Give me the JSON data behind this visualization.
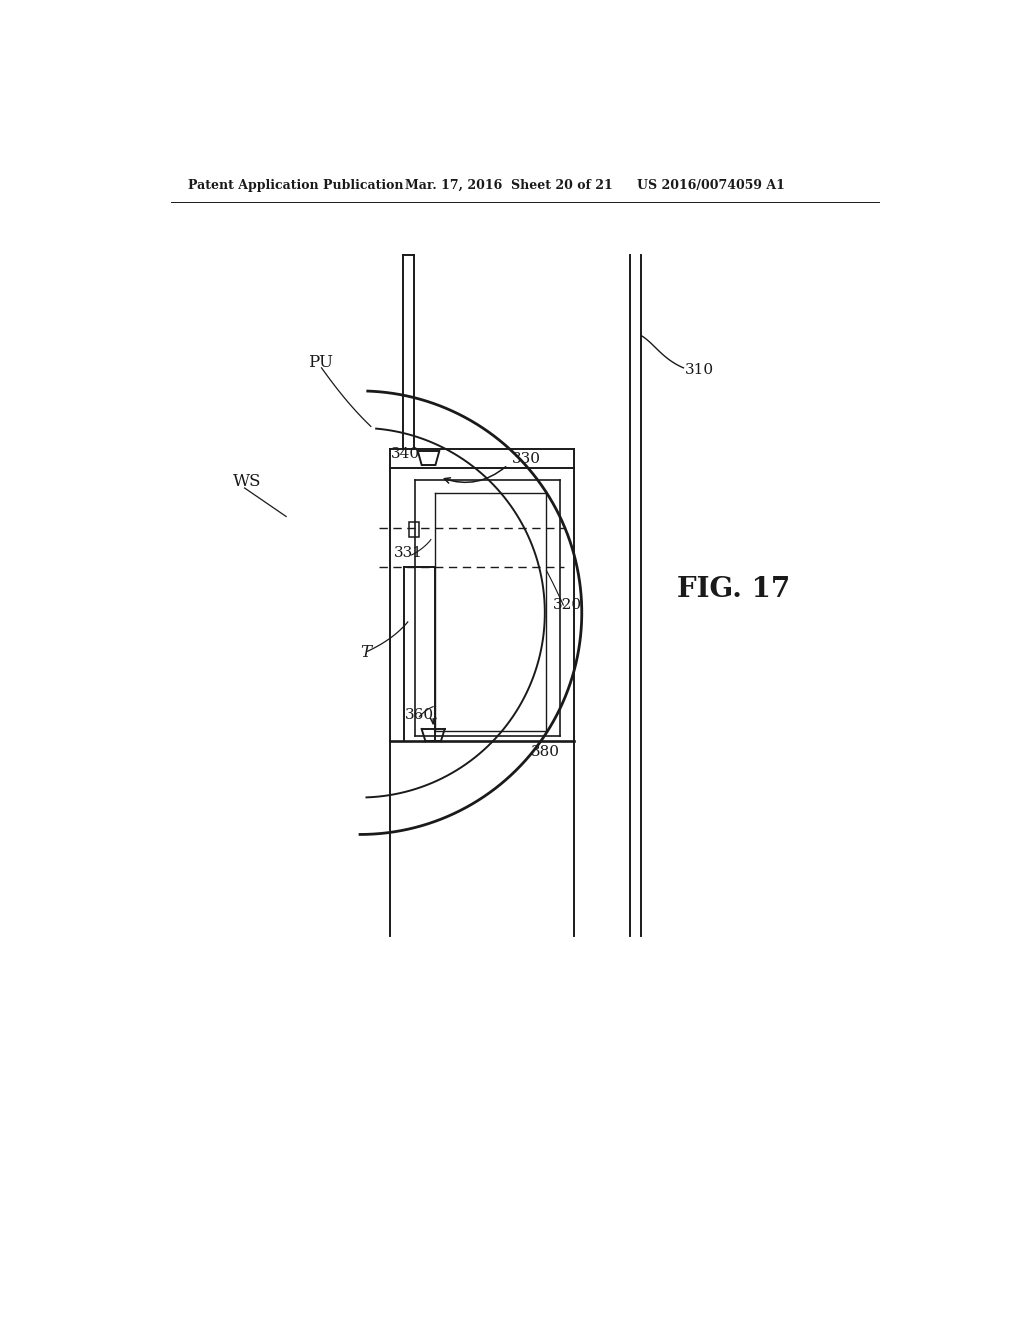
{
  "bg_color": "#ffffff",
  "line_color": "#1a1a1a",
  "header_left": "Patent Application Publication",
  "header_mid": "Mar. 17, 2016  Sheet 20 of 21",
  "header_right": "US 2016/0074059 A1",
  "fig_label": "FIG. 17"
}
